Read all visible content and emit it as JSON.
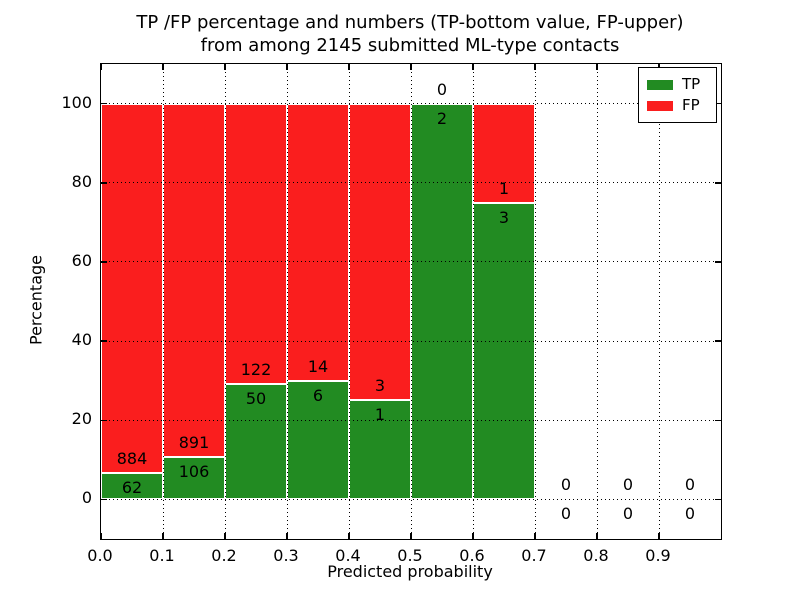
{
  "chart_data": {
    "type": "bar",
    "stacked": true,
    "title": "TP /FP percentage and numbers (TP-bottom value, FP-upper)",
    "subtitle": "from among 2145 submitted ML-type contacts",
    "xlabel": "Predicted probability",
    "ylabel": "Percentage",
    "xlim": [
      0.0,
      1.0
    ],
    "ylim": [
      -10,
      110
    ],
    "xtick_labels": [
      "0.0",
      "0.1",
      "0.2",
      "0.3",
      "0.4",
      "0.5",
      "0.6",
      "0.7",
      "0.8",
      "0.9"
    ],
    "xtick_values": [
      0.0,
      0.1,
      0.2,
      0.3,
      0.4,
      0.5,
      0.6,
      0.7,
      0.8,
      0.9
    ],
    "ytick_labels": [
      "0",
      "20",
      "40",
      "60",
      "80",
      "100"
    ],
    "ytick_values": [
      0,
      20,
      40,
      60,
      80,
      100
    ],
    "grid": {
      "style": "dotted",
      "color": "#000000",
      "on": true
    },
    "colors": {
      "tp": "#228b22",
      "fp": "#fa1e1e"
    },
    "legend": {
      "position": "upper right",
      "entries": [
        {
          "label": "TP",
          "color": "#228b22"
        },
        {
          "label": "FP",
          "color": "#fa1e1e"
        }
      ]
    },
    "bin_edges": [
      0.0,
      0.1,
      0.2,
      0.3,
      0.4,
      0.5,
      0.6,
      0.7,
      0.8,
      0.9,
      1.0
    ],
    "series": [
      {
        "name": "TP",
        "counts": [
          62,
          106,
          50,
          6,
          1,
          2,
          3,
          0,
          0,
          0
        ],
        "pct": [
          6.55,
          10.63,
          29.07,
          30,
          25,
          100,
          75,
          0,
          0,
          0
        ]
      },
      {
        "name": "FP",
        "counts": [
          884,
          891,
          122,
          14,
          3,
          0,
          1,
          0,
          0,
          0
        ],
        "pct": [
          93.45,
          89.37,
          70.93,
          70,
          75,
          0,
          25,
          0,
          0,
          0
        ]
      }
    ],
    "total_contacts": 2145
  }
}
